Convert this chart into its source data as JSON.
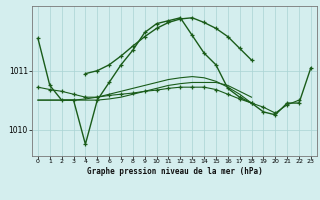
{
  "bg_color": "#d4eeee",
  "grid_color": "#aad4d4",
  "line_color": "#1a5c1a",
  "title": "Graphe pression niveau de la mer (hPa)",
  "yticks": [
    1010,
    1011
  ],
  "ylim": [
    1009.55,
    1012.1
  ],
  "xlim": [
    -0.5,
    23.5
  ],
  "series": [
    {
      "x": [
        0,
        1,
        2,
        3,
        4,
        5,
        6,
        7,
        8,
        9,
        10,
        11,
        12,
        13,
        14,
        15,
        16,
        17,
        18,
        19,
        20,
        21,
        22,
        23
      ],
      "y": [
        1011.55,
        1010.75,
        1010.5,
        1010.5,
        1009.75,
        1010.5,
        1010.8,
        1011.1,
        1011.35,
        1011.65,
        1011.8,
        1011.85,
        1011.9,
        1011.6,
        1011.3,
        1011.1,
        1010.7,
        1010.55,
        1010.45,
        1010.3,
        1010.25,
        1010.45,
        1010.45,
        1011.05
      ],
      "marker": true,
      "linewidth": 1.0
    },
    {
      "x": [
        0,
        1,
        2,
        3,
        4,
        5,
        6,
        7,
        8,
        9,
        10,
        11,
        12,
        13,
        14,
        15,
        16,
        17,
        18
      ],
      "y": [
        1010.5,
        1010.5,
        1010.5,
        1010.5,
        1010.5,
        1010.5,
        1010.52,
        1010.55,
        1010.6,
        1010.65,
        1010.7,
        1010.75,
        1010.78,
        1010.8,
        1010.8,
        1010.8,
        1010.75,
        1010.65,
        1010.55
      ],
      "marker": false,
      "linewidth": 0.8
    },
    {
      "x": [
        0,
        1,
        2,
        3,
        4,
        5,
        6,
        7,
        8,
        9,
        10,
        11,
        12,
        13,
        14,
        15,
        16,
        17,
        18
      ],
      "y": [
        1010.5,
        1010.5,
        1010.5,
        1010.5,
        1010.52,
        1010.55,
        1010.6,
        1010.65,
        1010.7,
        1010.75,
        1010.8,
        1010.85,
        1010.88,
        1010.9,
        1010.88,
        1010.82,
        1010.72,
        1010.6,
        1010.45
      ],
      "marker": false,
      "linewidth": 0.8
    },
    {
      "x": [
        0,
        1,
        2,
        3,
        4,
        5,
        6,
        7,
        8,
        9,
        10,
        11,
        12,
        13,
        14,
        15,
        16,
        17,
        18,
        19,
        20,
        21,
        22
      ],
      "y": [
        1010.72,
        1010.68,
        1010.65,
        1010.6,
        1010.55,
        1010.55,
        1010.58,
        1010.6,
        1010.62,
        1010.65,
        1010.67,
        1010.7,
        1010.72,
        1010.72,
        1010.72,
        1010.68,
        1010.6,
        1010.52,
        1010.45,
        1010.38,
        1010.28,
        1010.42,
        1010.5
      ],
      "marker": true,
      "linewidth": 0.8
    },
    {
      "x": [
        4,
        5,
        6,
        7,
        8,
        9,
        10,
        11,
        12,
        13,
        14,
        15,
        16,
        17,
        18
      ],
      "y": [
        1010.95,
        1011.0,
        1011.1,
        1011.25,
        1011.42,
        1011.58,
        1011.72,
        1011.82,
        1011.88,
        1011.9,
        1011.82,
        1011.72,
        1011.58,
        1011.38,
        1011.18
      ],
      "marker": true,
      "linewidth": 1.0
    }
  ]
}
